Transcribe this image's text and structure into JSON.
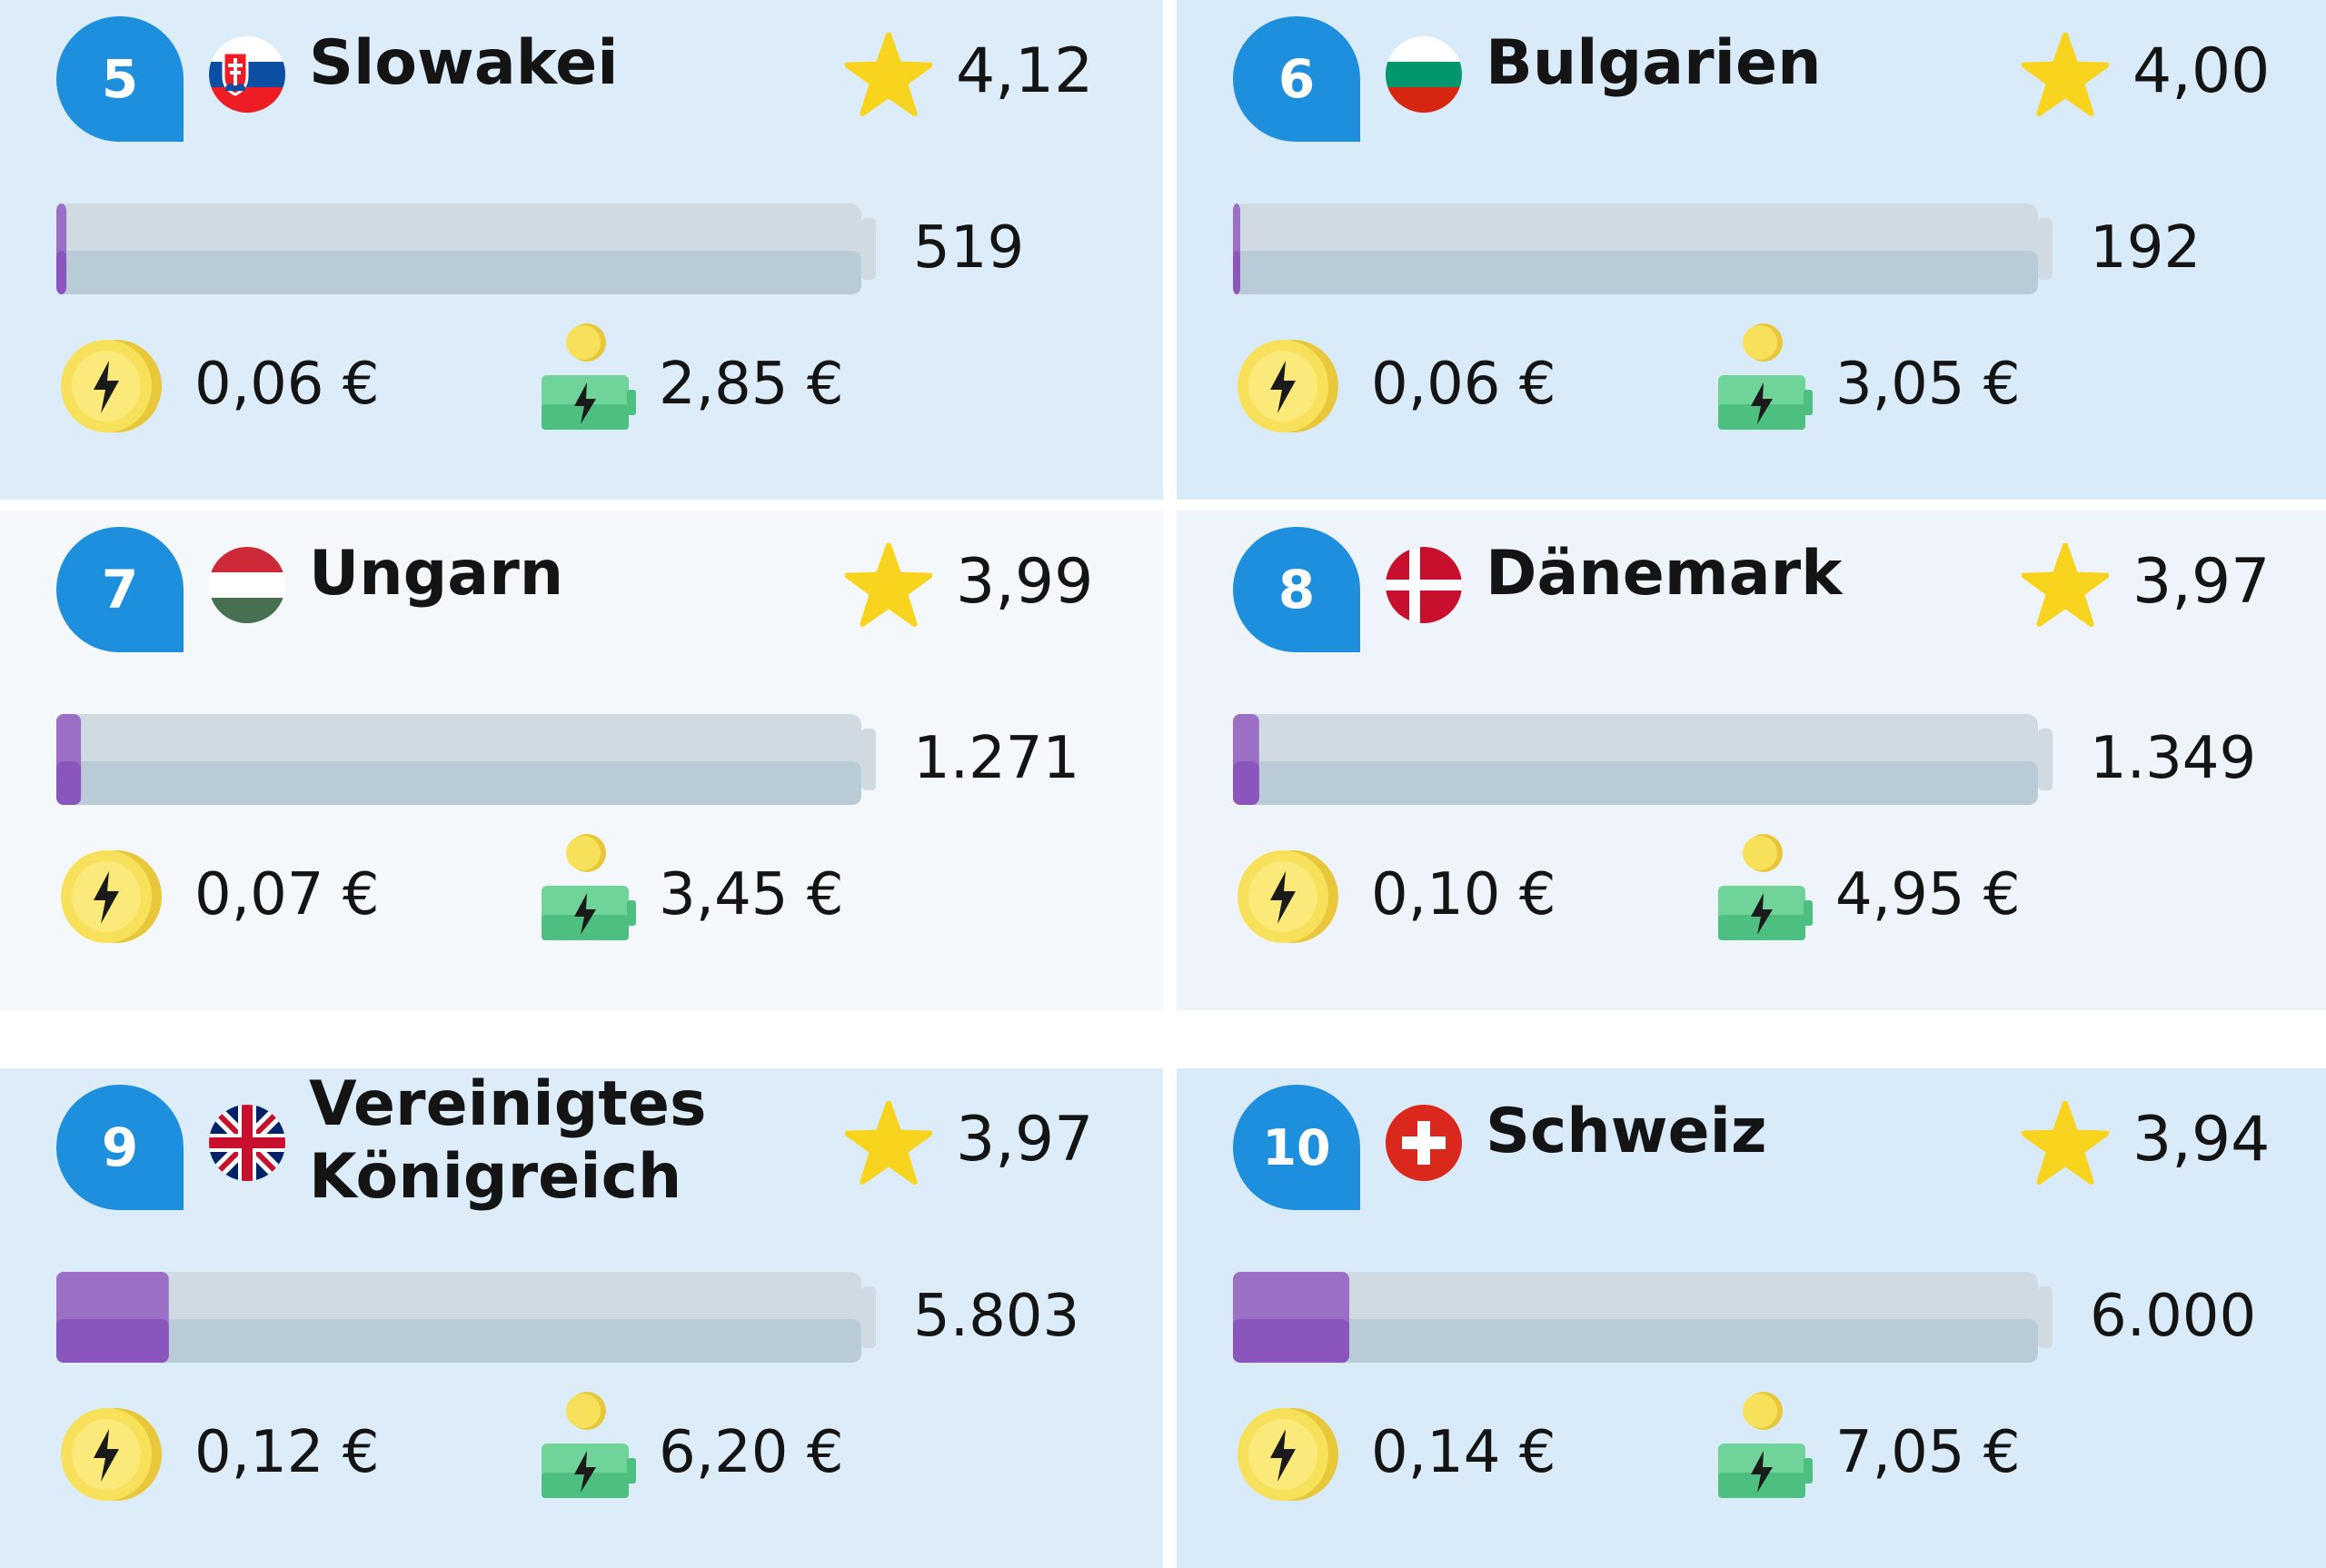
{
  "chart_data": {
    "type": "bar",
    "categories": [
      "Slowakei",
      "Bulgarien",
      "Ungarn",
      "Dänemark",
      "Vereinigtes Königreich",
      "Schweiz"
    ],
    "series": [
      {
        "values": [
          519,
          192,
          1271,
          1349,
          5803,
          6000
        ]
      }
    ]
  },
  "colors": {
    "rank_badge": "#1d8fdc",
    "bar_fill": "#9b6fc6",
    "bar_track": "#cfdae2",
    "star": "#f8d41f",
    "coin": "#f7e15b",
    "charger": "#6fd39a",
    "card_blue": "#dcedf9",
    "card_white": "#f4f8fb"
  },
  "cards": [
    {
      "rank": "5",
      "country": "Slowakei",
      "flag": "slovakia-flag-icon",
      "rating": "4,12",
      "count_label": "519",
      "price_kwh": "0,06 €",
      "price_full": "2,85 €"
    },
    {
      "rank": "6",
      "country": "Bulgarien",
      "flag": "bulgaria-flag-icon",
      "rating": "4,00",
      "count_label": "192",
      "price_kwh": "0,06 €",
      "price_full": "3,05 €"
    },
    {
      "rank": "7",
      "country": "Ungarn",
      "flag": "hungary-flag-icon",
      "rating": "3,99",
      "count_label": "1.271",
      "price_kwh": "0,07 €",
      "price_full": "3,45 €"
    },
    {
      "rank": "8",
      "country": "Dänemark",
      "flag": "denmark-flag-icon",
      "rating": "3,97",
      "count_label": "1.349",
      "price_kwh": "0,10 €",
      "price_full": "4,95 €"
    },
    {
      "rank": "9",
      "country_line1": "Vereinigtes",
      "country_line2": "Königreich",
      "flag": "uk-flag-icon",
      "rating": "3,97",
      "count_label": "5.803",
      "price_kwh": "0,12 €",
      "price_full": "6,20 €"
    },
    {
      "rank": "10",
      "country": "Schweiz",
      "flag": "switzerland-flag-icon",
      "rating": "3,94",
      "count_label": "6.000",
      "price_kwh": "0,14 €",
      "price_full": "7,05 €"
    }
  ]
}
